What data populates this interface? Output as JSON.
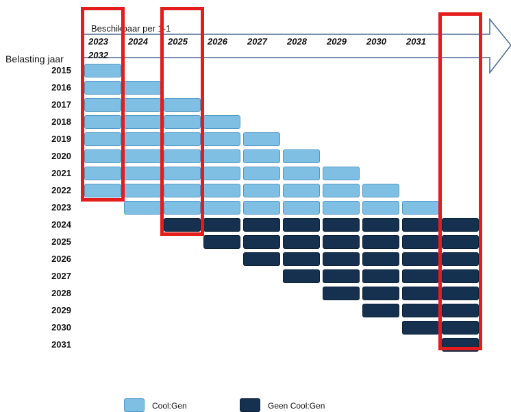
{
  "header": {
    "title": "Beschikbaar per 1-1",
    "row_axis_label": "Belasting jaar"
  },
  "columns": [
    "2023",
    "2024",
    "2025",
    "2026",
    "2027",
    "2028",
    "2029",
    "2030",
    "2031",
    "2032"
  ],
  "rows": [
    "2015",
    "2016",
    "2017",
    "2018",
    "2019",
    "2020",
    "2021",
    "2022",
    "2023",
    "2024",
    "2025",
    "2026",
    "2027",
    "2028",
    "2029",
    "2030",
    "2031"
  ],
  "legend": {
    "cool_gen": "Cool:Gen",
    "geen_cool_gen": "Geen Cool:Gen"
  },
  "colors": {
    "cool_gen": "#7fbfe3",
    "geen_cool_gen": "#15314f",
    "highlight": "#e41c1c",
    "arrow": "#4a6a90"
  },
  "highlighted_columns": [
    "2023",
    "2025",
    "2032"
  ],
  "availability_rule": "tax year T available from column max(2023, T+1) up to column T+8; dark when T >= 2024"
}
